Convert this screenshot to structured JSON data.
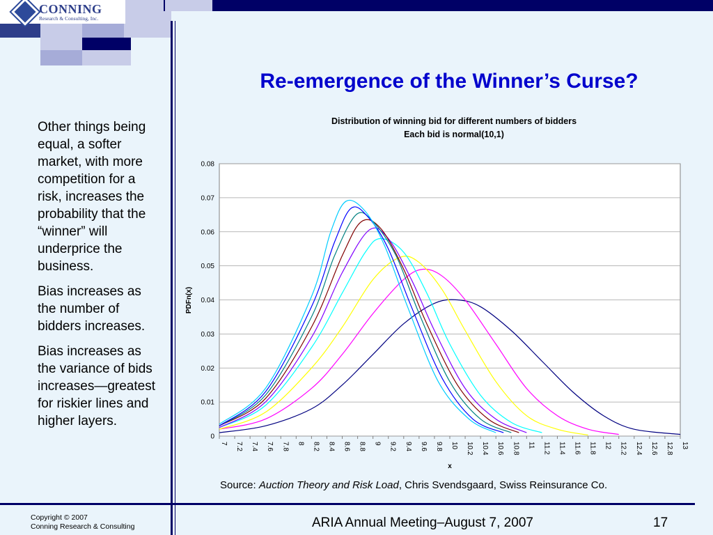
{
  "logo": {
    "name": "CONNING",
    "sub": "Research & Consulting, Inc."
  },
  "slide": {
    "title": "Re-emergence of the Winner’s Curse?",
    "bullets": [
      "Other things being equal, a softer market, with more competition for a risk, increases the probability that the “winner” will underprice the business.",
      "Bias increases as the number of bidders increases.",
      "Bias increases as the variance of bids increases—greatest for riskier lines and higher layers."
    ],
    "source_prefix": "Source: ",
    "source_title": "Auction Theory and Risk Load",
    "source_rest": ", Chris Svendsgaard, Swiss Reinsurance Co.",
    "copyright_line1": "Copyright © 2007",
    "copyright_line2": "Conning Research & Consulting",
    "footer": "ARIA Annual Meeting–August 7, 2007",
    "page_number": "17"
  },
  "chart_data": {
    "type": "line",
    "title": "Distribution of winning bid for different numbers of bidders",
    "subtitle": "Each bid is normal(10,1)",
    "xlabel": "x",
    "ylabel": "PDFn(x)",
    "xlim": [
      7,
      13
    ],
    "ylim": [
      0,
      0.08
    ],
    "yticks": [
      "0",
      "0.01",
      "0.02",
      "0.03",
      "0.04",
      "0.05",
      "0.06",
      "0.07",
      "0.08"
    ],
    "xticks": [
      "7",
      "7.2",
      "7.4",
      "7.6",
      "7.8",
      "8",
      "8.2",
      "8.4",
      "8.6",
      "8.8",
      "9",
      "9.2",
      "9.4",
      "9.6",
      "9.8",
      "10",
      "10.2",
      "10.4",
      "10.6",
      "10.8",
      "11",
      "11.2",
      "11.4",
      "11.6",
      "11.8",
      "12",
      "12.2",
      "12.4",
      "12.6",
      "12.8",
      "13"
    ],
    "grid": true,
    "legend": "none",
    "series": [
      {
        "color": "#000080",
        "peak": [
          10.1,
          0.04
        ],
        "points": [
          [
            7,
            0.001
          ],
          [
            7.6,
            0.003
          ],
          [
            8.2,
            0.008
          ],
          [
            8.6,
            0.015
          ],
          [
            9,
            0.024
          ],
          [
            9.4,
            0.033
          ],
          [
            9.8,
            0.039
          ],
          [
            10.1,
            0.04
          ],
          [
            10.4,
            0.038
          ],
          [
            10.8,
            0.031
          ],
          [
            11.2,
            0.022
          ],
          [
            11.6,
            0.013
          ],
          [
            12,
            0.006
          ],
          [
            12.4,
            0.002
          ],
          [
            13,
            0.0005
          ]
        ]
      },
      {
        "color": "#ff00ff",
        "peak": [
          9.65,
          0.049
        ],
        "points": [
          [
            7,
            0.002
          ],
          [
            7.6,
            0.005
          ],
          [
            8.2,
            0.014
          ],
          [
            8.6,
            0.024
          ],
          [
            9,
            0.036
          ],
          [
            9.4,
            0.046
          ],
          [
            9.65,
            0.049
          ],
          [
            9.9,
            0.047
          ],
          [
            10.2,
            0.04
          ],
          [
            10.6,
            0.027
          ],
          [
            11,
            0.014
          ],
          [
            11.4,
            0.006
          ],
          [
            11.8,
            0.002
          ],
          [
            12.2,
            0.0005
          ]
        ]
      },
      {
        "color": "#ffff00",
        "peak": [
          9.35,
          0.0525
        ],
        "points": [
          [
            7,
            0.002
          ],
          [
            7.6,
            0.007
          ],
          [
            8.2,
            0.02
          ],
          [
            8.6,
            0.032
          ],
          [
            9,
            0.046
          ],
          [
            9.35,
            0.0525
          ],
          [
            9.6,
            0.051
          ],
          [
            9.9,
            0.043
          ],
          [
            10.2,
            0.031
          ],
          [
            10.6,
            0.016
          ],
          [
            11,
            0.006
          ],
          [
            11.4,
            0.002
          ],
          [
            11.8,
            0.0003
          ]
        ]
      },
      {
        "color": "#00ffff",
        "peak": [
          9.1,
          0.058
        ],
        "points": [
          [
            7,
            0.0025
          ],
          [
            7.6,
            0.009
          ],
          [
            8.2,
            0.026
          ],
          [
            8.6,
            0.042
          ],
          [
            8.9,
            0.054
          ],
          [
            9.1,
            0.058
          ],
          [
            9.4,
            0.054
          ],
          [
            9.7,
            0.042
          ],
          [
            10,
            0.027
          ],
          [
            10.4,
            0.012
          ],
          [
            10.8,
            0.004
          ],
          [
            11.2,
            0.001
          ]
        ]
      },
      {
        "color": "#8000ff",
        "peak": [
          8.95,
          0.0605
        ],
        "points": [
          [
            7,
            0.0025
          ],
          [
            7.6,
            0.01
          ],
          [
            8.2,
            0.029
          ],
          [
            8.6,
            0.048
          ],
          [
            8.95,
            0.0605
          ],
          [
            9.2,
            0.058
          ],
          [
            9.5,
            0.046
          ],
          [
            9.8,
            0.031
          ],
          [
            10.2,
            0.014
          ],
          [
            10.6,
            0.005
          ],
          [
            11,
            0.001
          ]
        ]
      },
      {
        "color": "#800000",
        "peak": [
          8.85,
          0.063
        ],
        "points": [
          [
            7,
            0.003
          ],
          [
            7.6,
            0.011
          ],
          [
            8.2,
            0.032
          ],
          [
            8.6,
            0.053
          ],
          [
            8.85,
            0.063
          ],
          [
            9.1,
            0.061
          ],
          [
            9.4,
            0.049
          ],
          [
            9.7,
            0.033
          ],
          [
            10.1,
            0.015
          ],
          [
            10.5,
            0.005
          ],
          [
            10.9,
            0.001
          ]
        ]
      },
      {
        "color": "#008080",
        "peak": [
          8.78,
          0.065
        ],
        "points": [
          [
            7,
            0.003
          ],
          [
            7.6,
            0.012
          ],
          [
            8.2,
            0.035
          ],
          [
            8.5,
            0.053
          ],
          [
            8.78,
            0.065
          ],
          [
            9,
            0.063
          ],
          [
            9.3,
            0.053
          ],
          [
            9.6,
            0.036
          ],
          [
            10,
            0.016
          ],
          [
            10.4,
            0.005
          ],
          [
            10.8,
            0.001
          ]
        ]
      },
      {
        "color": "#0000ff",
        "peak": [
          8.72,
          0.067
        ],
        "points": [
          [
            7,
            0.003
          ],
          [
            7.6,
            0.013
          ],
          [
            8.2,
            0.038
          ],
          [
            8.5,
            0.057
          ],
          [
            8.72,
            0.067
          ],
          [
            8.95,
            0.064
          ],
          [
            9.2,
            0.055
          ],
          [
            9.5,
            0.038
          ],
          [
            9.9,
            0.017
          ],
          [
            10.3,
            0.005
          ],
          [
            10.7,
            0.001
          ]
        ]
      },
      {
        "color": "#00ccff",
        "peak": [
          8.65,
          0.069
        ],
        "points": [
          [
            7,
            0.0035
          ],
          [
            7.6,
            0.014
          ],
          [
            8.2,
            0.041
          ],
          [
            8.45,
            0.06
          ],
          [
            8.65,
            0.069
          ],
          [
            8.9,
            0.066
          ],
          [
            9.15,
            0.056
          ],
          [
            9.45,
            0.038
          ],
          [
            9.85,
            0.016
          ],
          [
            10.25,
            0.005
          ],
          [
            10.6,
            0.001
          ]
        ]
      }
    ]
  }
}
